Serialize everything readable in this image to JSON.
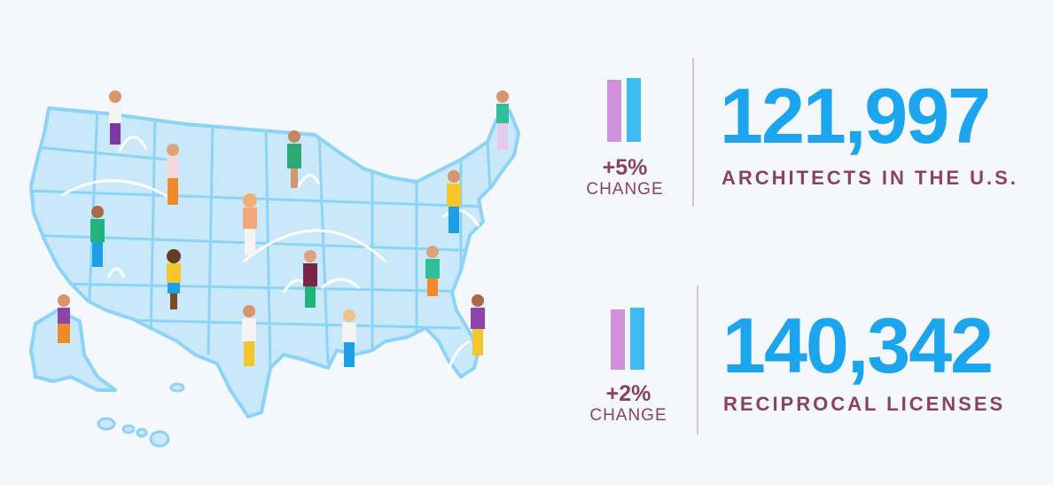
{
  "colors": {
    "bar_left": "#d18fdc",
    "bar_right": "#3dbbf2",
    "number": "#1aa5ee",
    "label": "#8a4261",
    "map_fill": "#c9e9fb",
    "map_stroke": "#8dd3f7",
    "background": "#f4f8fc"
  },
  "stats": [
    {
      "change": "+5%",
      "change_label": "CHANGE",
      "value": "121,997",
      "label": "ARCHITECTS IN THE U.S."
    },
    {
      "change": "+2%",
      "change_label": "CHANGE",
      "value": "140,342",
      "label": "RECIPROCAL LICENSES"
    }
  ],
  "map": {
    "icon": "us-map-with-people-icon"
  }
}
